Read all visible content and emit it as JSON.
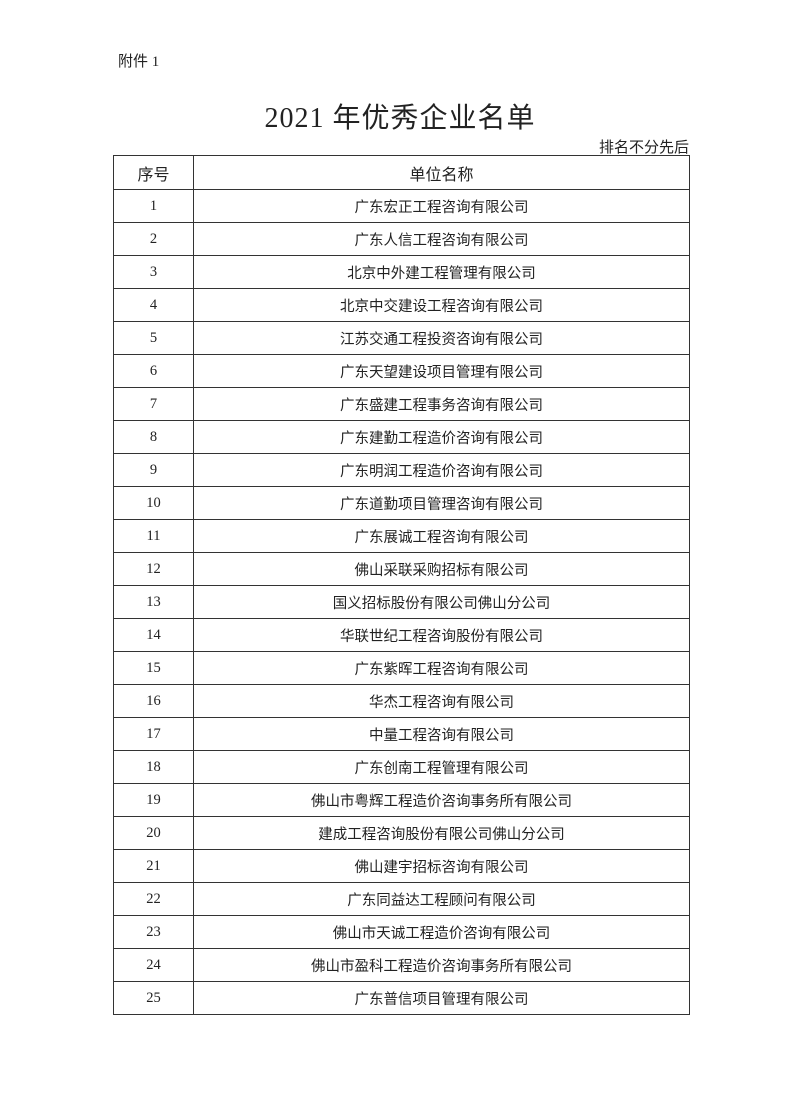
{
  "attachment_label": "附件 1",
  "title": "2021 年优秀企业名单",
  "note": "排名不分先后",
  "table": {
    "headers": [
      "序号",
      "单位名称"
    ],
    "rows": [
      [
        "1",
        "广东宏正工程咨询有限公司"
      ],
      [
        "2",
        "广东人信工程咨询有限公司"
      ],
      [
        "3",
        "北京中外建工程管理有限公司"
      ],
      [
        "4",
        "北京中交建设工程咨询有限公司"
      ],
      [
        "5",
        "江苏交通工程投资咨询有限公司"
      ],
      [
        "6",
        "广东天望建设项目管理有限公司"
      ],
      [
        "7",
        "广东盛建工程事务咨询有限公司"
      ],
      [
        "8",
        "广东建勤工程造价咨询有限公司"
      ],
      [
        "9",
        "广东明润工程造价咨询有限公司"
      ],
      [
        "10",
        "广东道勤项目管理咨询有限公司"
      ],
      [
        "11",
        "广东展诚工程咨询有限公司"
      ],
      [
        "12",
        "佛山采联采购招标有限公司"
      ],
      [
        "13",
        "国义招标股份有限公司佛山分公司"
      ],
      [
        "14",
        "华联世纪工程咨询股份有限公司"
      ],
      [
        "15",
        "广东紫晖工程咨询有限公司"
      ],
      [
        "16",
        "华杰工程咨询有限公司"
      ],
      [
        "17",
        "中量工程咨询有限公司"
      ],
      [
        "18",
        "广东创南工程管理有限公司"
      ],
      [
        "19",
        "佛山市粤辉工程造价咨询事务所有限公司"
      ],
      [
        "20",
        "建成工程咨询股份有限公司佛山分公司"
      ],
      [
        "21",
        "佛山建宇招标咨询有限公司"
      ],
      [
        "22",
        "广东同益达工程顾问有限公司"
      ],
      [
        "23",
        "佛山市天诚工程造价咨询有限公司"
      ],
      [
        "24",
        "佛山市盈科工程造价咨询事务所有限公司"
      ],
      [
        "25",
        "广东普信项目管理有限公司"
      ]
    ]
  }
}
